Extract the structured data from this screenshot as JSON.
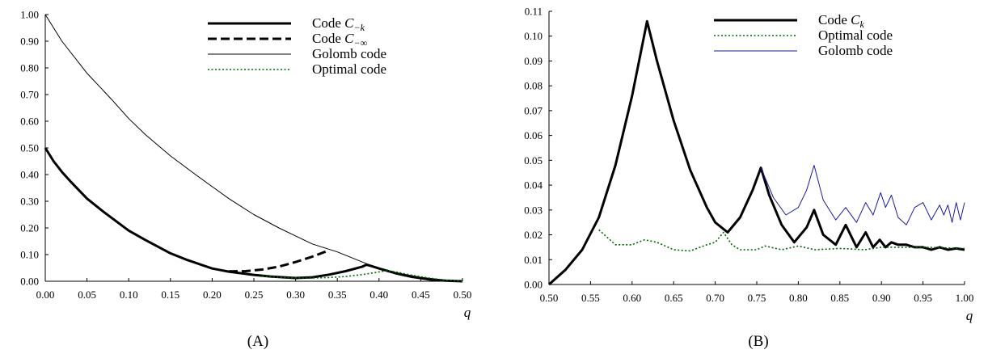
{
  "chart_data": [
    {
      "type": "line",
      "panel_label": "(A)",
      "xlabel": "q",
      "ylabel": "",
      "xlim": [
        0,
        0.5
      ],
      "ylim": [
        0,
        1.0
      ],
      "xticks": [
        "0.00",
        "0.05",
        "0.10",
        "0.15",
        "0.20",
        "0.25",
        "0.30",
        "0.35",
        "0.40",
        "0.45",
        "0.50"
      ],
      "yticks": [
        "0.00",
        "0.10",
        "0.20",
        "0.30",
        "0.40",
        "0.50",
        "0.60",
        "0.70",
        "0.80",
        "0.90",
        "1.00"
      ],
      "grid": false,
      "legend_position": "top-right",
      "series": [
        {
          "name": "Code C",
          "name_subscript": "−k",
          "style": "thick",
          "color": "#000000",
          "x": [
            0.0,
            0.01,
            0.02,
            0.03,
            0.05,
            0.07,
            0.1,
            0.12,
            0.15,
            0.17,
            0.2,
            0.22,
            0.25,
            0.27,
            0.29,
            0.3,
            0.32,
            0.34,
            0.36,
            0.38,
            0.385,
            0.39,
            0.4,
            0.42,
            0.44,
            0.46,
            0.48,
            0.5
          ],
          "y": [
            0.5,
            0.45,
            0.41,
            0.375,
            0.31,
            0.26,
            0.19,
            0.155,
            0.105,
            0.08,
            0.048,
            0.036,
            0.024,
            0.018,
            0.014,
            0.012,
            0.015,
            0.025,
            0.038,
            0.055,
            0.062,
            0.058,
            0.048,
            0.03,
            0.016,
            0.007,
            0.002,
            0.0
          ]
        },
        {
          "name": "Code C",
          "name_subscript": "−∞",
          "style": "dashed",
          "color": "#000000",
          "x": [
            0.22,
            0.24,
            0.26,
            0.28,
            0.3,
            0.32,
            0.34
          ],
          "y": [
            0.037,
            0.038,
            0.044,
            0.055,
            0.072,
            0.092,
            0.116
          ]
        },
        {
          "name": "Golomb code",
          "style": "thin",
          "color": "#000000",
          "x": [
            0.0,
            0.02,
            0.05,
            0.08,
            0.1,
            0.12,
            0.15,
            0.18,
            0.2,
            0.22,
            0.25,
            0.28,
            0.3,
            0.32,
            0.35,
            0.38,
            0.4,
            0.42,
            0.45,
            0.48,
            0.5
          ],
          "y": [
            1.0,
            0.9,
            0.78,
            0.68,
            0.61,
            0.55,
            0.47,
            0.4,
            0.355,
            0.31,
            0.25,
            0.2,
            0.17,
            0.14,
            0.11,
            0.072,
            0.048,
            0.032,
            0.015,
            0.004,
            0.0
          ]
        },
        {
          "name": "Optimal code",
          "style": "dotted",
          "color": "#006400",
          "x": [
            0.26,
            0.28,
            0.3,
            0.32,
            0.34,
            0.36,
            0.38,
            0.4,
            0.41,
            0.42,
            0.44,
            0.46,
            0.48,
            0.5
          ],
          "y": [
            0.02,
            0.015,
            0.012,
            0.012,
            0.014,
            0.018,
            0.025,
            0.035,
            0.04,
            0.035,
            0.022,
            0.012,
            0.004,
            0.0
          ]
        }
      ]
    },
    {
      "type": "line",
      "panel_label": "(B)",
      "xlabel": "q",
      "ylabel": "",
      "xlim": [
        0.5,
        1.0
      ],
      "ylim": [
        0,
        0.11
      ],
      "xticks": [
        "0.50",
        "0.55",
        "0.60",
        "0.65",
        "0.70",
        "0.75",
        "0.80",
        "0.85",
        "0.90",
        "0.95",
        "1.00"
      ],
      "yticks": [
        "0.00",
        "0.01",
        "0.02",
        "0.03",
        "0.04",
        "0.05",
        "0.06",
        "0.07",
        "0.08",
        "0.09",
        "0.10",
        "0.11"
      ],
      "grid": false,
      "legend_position": "top-right",
      "series": [
        {
          "name": "Code C",
          "name_subscript": "k",
          "style": "thick",
          "color": "#000000",
          "x": [
            0.5,
            0.52,
            0.54,
            0.56,
            0.58,
            0.6,
            0.618,
            0.63,
            0.65,
            0.67,
            0.69,
            0.7,
            0.715,
            0.73,
            0.745,
            0.755,
            0.765,
            0.78,
            0.795,
            0.81,
            0.819,
            0.83,
            0.845,
            0.857,
            0.87,
            0.881,
            0.89,
            0.898,
            0.905,
            0.912,
            0.92,
            0.93,
            0.94,
            0.95,
            0.96,
            0.97,
            0.98,
            0.99,
            1.0
          ],
          "y": [
            0.0,
            0.006,
            0.014,
            0.027,
            0.048,
            0.076,
            0.106,
            0.09,
            0.066,
            0.046,
            0.031,
            0.025,
            0.021,
            0.027,
            0.038,
            0.047,
            0.036,
            0.024,
            0.017,
            0.023,
            0.03,
            0.02,
            0.016,
            0.024,
            0.015,
            0.021,
            0.015,
            0.018,
            0.015,
            0.017,
            0.016,
            0.016,
            0.015,
            0.015,
            0.014,
            0.015,
            0.014,
            0.0145,
            0.014
          ]
        },
        {
          "name": "Optimal code",
          "style": "dotted",
          "color": "#006400",
          "x": [
            0.56,
            0.58,
            0.6,
            0.615,
            0.63,
            0.65,
            0.67,
            0.69,
            0.7,
            0.71,
            0.72,
            0.73,
            0.75,
            0.76,
            0.78,
            0.8,
            0.82,
            0.85,
            0.88,
            0.9,
            0.95,
            1.0
          ],
          "y": [
            0.022,
            0.016,
            0.016,
            0.018,
            0.017,
            0.014,
            0.0135,
            0.016,
            0.017,
            0.021,
            0.016,
            0.014,
            0.014,
            0.0155,
            0.014,
            0.0155,
            0.014,
            0.0145,
            0.014,
            0.015,
            0.015,
            0.0145
          ]
        },
        {
          "name": "Golomb code",
          "style": "thin",
          "color": "#1a1aa0",
          "x": [
            0.755,
            0.77,
            0.785,
            0.8,
            0.81,
            0.819,
            0.83,
            0.845,
            0.857,
            0.87,
            0.881,
            0.89,
            0.899,
            0.905,
            0.912,
            0.92,
            0.93,
            0.94,
            0.95,
            0.96,
            0.965,
            0.97,
            0.975,
            0.98,
            0.985,
            0.99,
            0.995,
            1.0
          ],
          "y": [
            0.047,
            0.035,
            0.028,
            0.031,
            0.038,
            0.048,
            0.034,
            0.026,
            0.031,
            0.025,
            0.033,
            0.028,
            0.037,
            0.031,
            0.036,
            0.027,
            0.024,
            0.031,
            0.033,
            0.026,
            0.029,
            0.032,
            0.028,
            0.032,
            0.025,
            0.033,
            0.026,
            0.033
          ]
        }
      ]
    }
  ]
}
